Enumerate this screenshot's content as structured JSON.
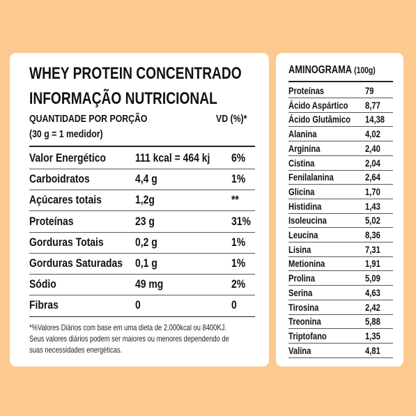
{
  "nutrition": {
    "title": "WHEY PROTEIN CONCENTRADO",
    "subtitle": "INFORMAÇÃO NUTRICIONAL",
    "serving_label": "QUANTIDADE POR PORÇÃO",
    "serving_size": "(30 g = 1 medidor)",
    "vd_header": "VD (%)*",
    "rows": [
      {
        "name": "Valor Energético",
        "amount": "111 kcal = 464 kj",
        "vd": "6%"
      },
      {
        "name": "Carboidratos",
        "amount": "4,4 g",
        "vd": "1%"
      },
      {
        "name": "Açúcares totais",
        "amount": "1,2g",
        "vd": "**"
      },
      {
        "name": "Proteínas",
        "amount": "23 g",
        "vd": "31%"
      },
      {
        "name": "Gorduras Totais",
        "amount": "0,2 g",
        "vd": "1%"
      },
      {
        "name": "Gorduras Saturadas",
        "amount": "0,1 g",
        "vd": "1%"
      },
      {
        "name": "Sódio",
        "amount": "49 mg",
        "vd": "2%"
      },
      {
        "name": "Fibras",
        "amount": "0",
        "vd": "0"
      }
    ],
    "footnote_lines": [
      "*%Valores Diários com base em uma dieta de 2.000kcal ou 8400KJ.",
      "Seus valores diários podem ser maiores ou menores dependendo de",
      "suas necessidades energéticas."
    ]
  },
  "aminograma": {
    "title": "AMINOGRAMA",
    "unit": "(100g)",
    "rows": [
      {
        "name": "Proteínas",
        "value": "79"
      },
      {
        "name": "Ácido Aspártico",
        "value": "8,77"
      },
      {
        "name": "Ácido Glutâmico",
        "value": "14,38"
      },
      {
        "name": "Alanina",
        "value": "4,02"
      },
      {
        "name": "Arginina",
        "value": "2,40"
      },
      {
        "name": "Cistina",
        "value": "2,04"
      },
      {
        "name": "Fenilalanina",
        "value": "2,64"
      },
      {
        "name": "Glicina",
        "value": "1,70"
      },
      {
        "name": "Histidina",
        "value": "1,43"
      },
      {
        "name": "Isoleucina",
        "value": "5,02"
      },
      {
        "name": "Leucina",
        "value": "8,36"
      },
      {
        "name": "Lisina",
        "value": "7,31"
      },
      {
        "name": "Metionina",
        "value": "1,91"
      },
      {
        "name": "Prolina",
        "value": "5,09"
      },
      {
        "name": "Serina",
        "value": "4,63"
      },
      {
        "name": "Tirosina",
        "value": "2,42"
      },
      {
        "name": "Treonina",
        "value": "5,88"
      },
      {
        "name": "Triptofano",
        "value": "1,35"
      },
      {
        "name": "Valina",
        "value": "4,81"
      }
    ]
  },
  "colors": {
    "background": "#fcc990",
    "card": "#ffffff",
    "text": "#111111"
  }
}
